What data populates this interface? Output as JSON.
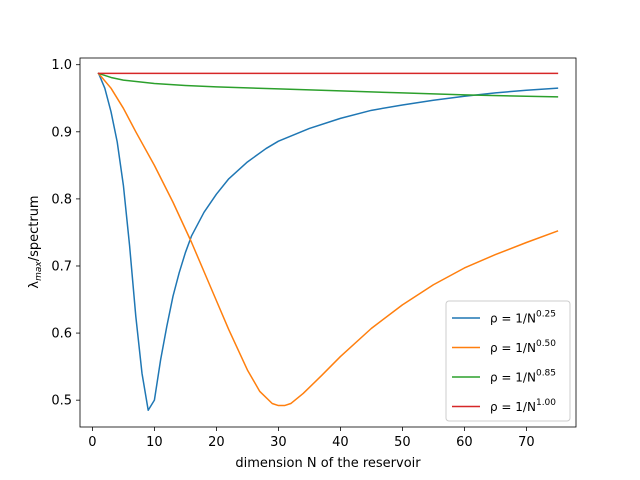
{
  "chart_data": {
    "type": "line",
    "xlabel": "dimension N of the reservoir",
    "ylabel_base": "λ",
    "ylabel_sub": "max",
    "ylabel_rest": "/spectrum",
    "xlim": [
      -2,
      78
    ],
    "ylim": [
      0.46,
      1.01
    ],
    "xticks": [
      0,
      10,
      20,
      30,
      40,
      50,
      60,
      70
    ],
    "yticks": [
      0.5,
      0.6,
      0.7,
      0.8,
      0.9,
      1.0
    ],
    "xtick_labels": [
      "0",
      "10",
      "20",
      "30",
      "40",
      "50",
      "60",
      "70"
    ],
    "ytick_labels": [
      "0.5",
      "0.6",
      "0.7",
      "0.8",
      "0.9",
      "1.0"
    ],
    "legend_position": "lower-right",
    "series": [
      {
        "legend_prefix": "ρ = 1/N",
        "legend_exp": "0.25",
        "color": "#1f77b4",
        "x": [
          1,
          2,
          3,
          4,
          5,
          6,
          7,
          8,
          9,
          10,
          11,
          12,
          13,
          14,
          15,
          16,
          18,
          20,
          22,
          25,
          28,
          30,
          35,
          40,
          45,
          50,
          55,
          60,
          65,
          70,
          75
        ],
        "y": [
          0.987,
          0.965,
          0.93,
          0.885,
          0.82,
          0.73,
          0.625,
          0.54,
          0.485,
          0.5,
          0.56,
          0.61,
          0.655,
          0.69,
          0.72,
          0.745,
          0.78,
          0.807,
          0.83,
          0.855,
          0.875,
          0.886,
          0.905,
          0.92,
          0.932,
          0.94,
          0.947,
          0.953,
          0.958,
          0.962,
          0.965
        ]
      },
      {
        "legend_prefix": "ρ = 1/N",
        "legend_exp": "0.50",
        "color": "#ff7f0e",
        "x": [
          1,
          3,
          5,
          7,
          10,
          13,
          16,
          19,
          22,
          25,
          27,
          29,
          30,
          31,
          32,
          34,
          37,
          40,
          45,
          50,
          55,
          60,
          65,
          70,
          75
        ],
        "y": [
          0.987,
          0.965,
          0.935,
          0.9,
          0.85,
          0.795,
          0.735,
          0.67,
          0.605,
          0.545,
          0.513,
          0.495,
          0.492,
          0.492,
          0.495,
          0.51,
          0.537,
          0.565,
          0.607,
          0.642,
          0.672,
          0.697,
          0.717,
          0.735,
          0.752
        ]
      },
      {
        "legend_prefix": "ρ = 1/N",
        "legend_exp": "0.85",
        "color": "#2ca02c",
        "x": [
          1,
          3,
          5,
          10,
          15,
          20,
          30,
          40,
          50,
          60,
          70,
          75
        ],
        "y": [
          0.987,
          0.981,
          0.977,
          0.972,
          0.969,
          0.967,
          0.964,
          0.961,
          0.958,
          0.955,
          0.953,
          0.952
        ]
      },
      {
        "legend_prefix": "ρ = 1/N",
        "legend_exp": "1.00",
        "color": "#d62728",
        "x": [
          1,
          75
        ],
        "y": [
          0.987,
          0.987
        ]
      }
    ]
  }
}
